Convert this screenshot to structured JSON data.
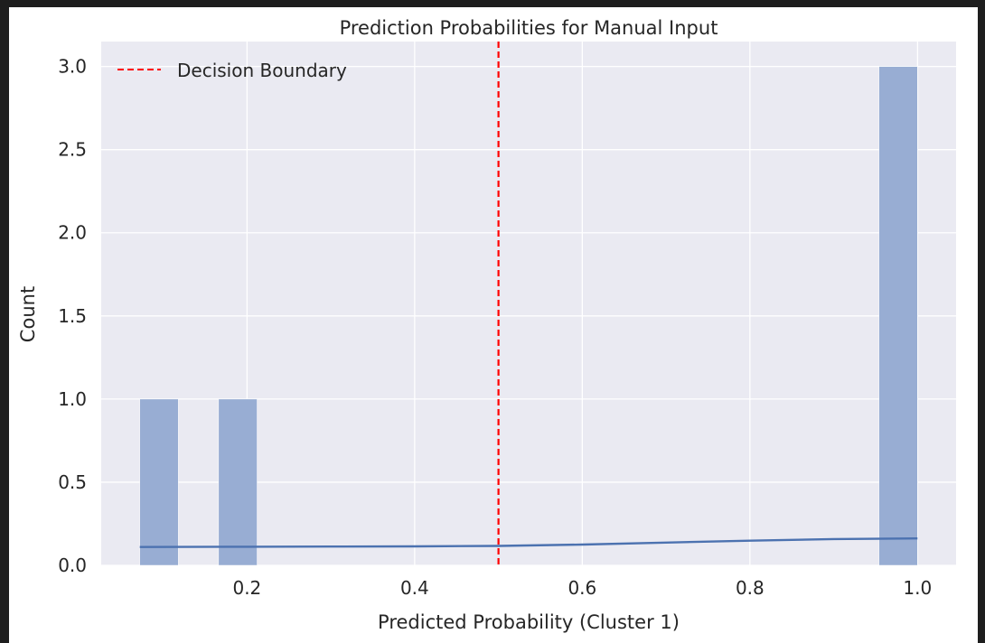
{
  "chart_data": {
    "type": "bar",
    "title": "Prediction Probabilities for Manual Input",
    "xlabel": "Predicted Probability (Cluster 1)",
    "ylabel": "Count",
    "xlim": [
      0.026,
      1.046
    ],
    "ylim": [
      0,
      3.15
    ],
    "xticks": [
      "0.2",
      "0.4",
      "0.6",
      "0.8",
      "1.0"
    ],
    "yticks": [
      "0.0",
      "0.5",
      "1.0",
      "1.5",
      "2.0",
      "2.5",
      "3.0"
    ],
    "bins": [
      {
        "x0": 0.072,
        "x1": 0.118,
        "count": 1
      },
      {
        "x0": 0.166,
        "x1": 0.212,
        "count": 1
      },
      {
        "x0": 0.954,
        "x1": 1.0,
        "count": 3
      }
    ],
    "kde": {
      "x": [
        0.072,
        0.2,
        0.3,
        0.4,
        0.5,
        0.6,
        0.7,
        0.8,
        0.9,
        1.0
      ],
      "y": [
        0.11,
        0.112,
        0.113,
        0.114,
        0.117,
        0.125,
        0.137,
        0.148,
        0.158,
        0.162
      ]
    },
    "decision_boundary": 0.5,
    "legend": {
      "label": "Decision Boundary",
      "placement": "top-left"
    },
    "grid": true,
    "colors": {
      "bars": "#98add3",
      "kde": "#4c72b0",
      "boundary": "#ff0000",
      "plot_background": "#eaeaf2",
      "grid": "#ffffff"
    }
  }
}
